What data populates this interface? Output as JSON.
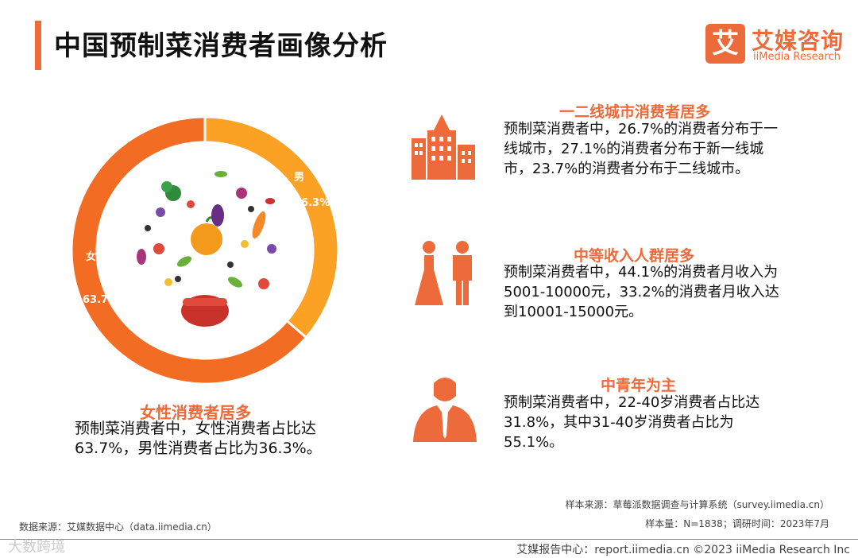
{
  "page": {
    "title": "中国预制菜消费者画像分析"
  },
  "logo": {
    "mark": "艾",
    "name_cn": "艾媒咨询",
    "name_en": "iiMedia Research"
  },
  "colors": {
    "accent": "#ed6a3a",
    "female": "#f26d23",
    "male": "#fba124"
  },
  "chart_data": {
    "type": "pie",
    "categories": [
      "女",
      "男"
    ],
    "values": [
      63.7,
      36.3
    ],
    "labels": [
      "63.7%",
      "36.3%"
    ],
    "unit": "%"
  },
  "left_block": {
    "heading": "女性消费者居多",
    "text": "预制菜消费者中，女性消费者占比达63.7%，男性消费者占比为36.3%。"
  },
  "sections": [
    {
      "icon": "city-buildings-icon",
      "heading": "一二线城市消费者居多",
      "text": "预制菜消费者中，26.7%的消费者分布于一线城市，27.1%的消费者分布于新一线城市，23.7%的消费者分布于二线城市。"
    },
    {
      "icon": "people-couple-icon",
      "heading": "中等收入人群居多",
      "text": "预制菜消费者中，44.1%的消费者月收入为5001-10000元，33.2%的消费者月收入达到10001-15000元。"
    },
    {
      "icon": "businessman-icon",
      "heading": "中青年为主",
      "text": "预制菜消费者中，22-40岁消费者占比达31.8%，其中31-40岁消费者占比为55.1%。"
    }
  ],
  "footer": {
    "sample_source": "样本来源：草莓派数据调查与计算系统（survey.iimedia.cn）",
    "sample_info": "样本量：N=1838；调研时间：2023年7月",
    "data_source": "数据来源：艾媒数据中心（data.iimedia.cn）",
    "report_center": "艾媒报告中心：report.iimedia.cn ©2023 iiMedia Research Inc",
    "watermark": "大数跨境"
  }
}
